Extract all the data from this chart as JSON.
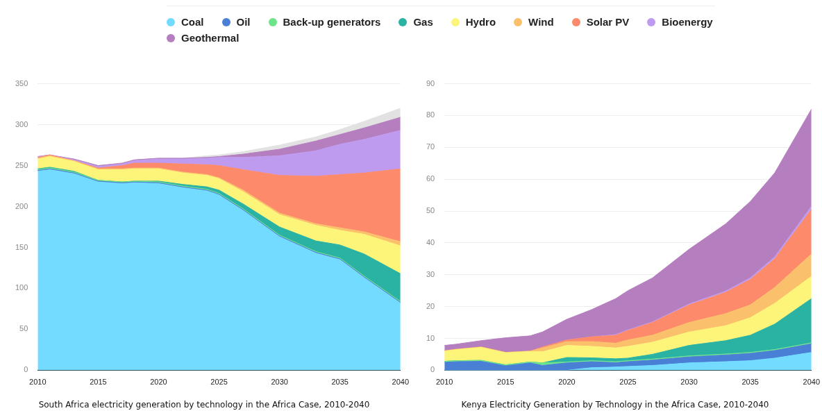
{
  "chart_data": [
    {
      "type": "area",
      "stacked": true,
      "title": "South Africa electricity generation by technology in the Africa Case, 2010-2040",
      "legend": "top",
      "grid": "y",
      "marker": "none",
      "x": [
        2010,
        2011,
        2013,
        2015,
        2017,
        2018,
        2020,
        2022,
        2024,
        2025,
        2027,
        2030,
        2033,
        2035,
        2037,
        2040
      ],
      "xlim": [
        2010,
        2040
      ],
      "xticks": [
        2010,
        2015,
        2020,
        2025,
        2030,
        2035,
        2040
      ],
      "ylim": [
        0,
        350
      ],
      "yticks": [
        0,
        50,
        100,
        150,
        200,
        250,
        300,
        350
      ],
      "series": [
        {
          "name": "Coal",
          "color": "#73dbff",
          "values": [
            243,
            245,
            240,
            230,
            228,
            229,
            228,
            223,
            219,
            214,
            195,
            163,
            143,
            135,
            113,
            82
          ]
        },
        {
          "name": "Oil",
          "color": "#4a7fd6",
          "values": [
            1,
            1,
            1,
            1,
            1,
            1,
            1,
            1,
            1,
            1,
            1,
            1,
            1,
            1,
            1,
            1
          ]
        },
        {
          "name": "Back-up generators",
          "color": "#6ee38a",
          "values": [
            1,
            1,
            1,
            1,
            1,
            1,
            1,
            1,
            1,
            1,
            1,
            1,
            1,
            1,
            1,
            1
          ]
        },
        {
          "name": "Gas",
          "color": "#2ab3a3",
          "values": [
            1,
            1,
            1,
            0,
            0,
            0,
            1,
            2,
            3,
            4,
            6,
            10,
            13,
            16,
            27,
            34
          ]
        },
        {
          "name": "Hydro",
          "color": "#fdf47a",
          "values": [
            12,
            13,
            12,
            13,
            15,
            15,
            15,
            14,
            14,
            14,
            15,
            15,
            19,
            18,
            24,
            34
          ]
        },
        {
          "name": "Wind",
          "color": "#fbc06b",
          "values": [
            1,
            1,
            1,
            1,
            1,
            1,
            1,
            1,
            1,
            1,
            2,
            2,
            2,
            3,
            3,
            5
          ]
        },
        {
          "name": "Solar PV",
          "color": "#fd8a6a",
          "values": [
            1,
            1,
            0,
            1,
            4,
            6,
            6,
            10,
            12,
            15,
            25,
            46,
            58,
            65,
            72,
            89
          ]
        },
        {
          "name": "Bioenergy",
          "color": "#bf9bf0",
          "values": [
            1,
            0,
            1,
            2,
            2,
            3,
            5,
            6,
            8,
            10,
            15,
            24,
            31,
            37,
            41,
            47
          ]
        },
        {
          "name": "Geothermal",
          "color": "#b57fbf",
          "values": [
            0,
            0,
            1,
            1,
            1,
            1,
            1,
            1,
            1,
            1,
            4,
            8,
            12,
            12,
            14,
            16
          ]
        },
        {
          "color": "#e2e2e2",
          "values": [
            0,
            0,
            0,
            0,
            0,
            0,
            0,
            0,
            2,
            2,
            3,
            5,
            5,
            6,
            8,
            11
          ]
        }
      ]
    },
    {
      "type": "area",
      "stacked": true,
      "title": "Kenya Electricity Generation by Technology in the Africa Case, 2010-2040",
      "grid": "y",
      "marker": "none",
      "x": [
        2010,
        2011,
        2013,
        2015,
        2017,
        2018,
        2020,
        2022,
        2024,
        2025,
        2027,
        2030,
        2033,
        2035,
        2037,
        2040
      ],
      "xlim": [
        2010,
        2040
      ],
      "xticks": [
        2010,
        2015,
        2020,
        2025,
        2030,
        2035,
        2040
      ],
      "ylim": [
        0,
        90
      ],
      "yticks": [
        0,
        10,
        20,
        30,
        40,
        50,
        60,
        70,
        80,
        90
      ],
      "series": [
        {
          "color": "#73dbff",
          "values": [
            0,
            0,
            0,
            0,
            0,
            0,
            0,
            0.8,
            1,
            1.2,
            1.5,
            2.3,
            2.7,
            3,
            3.8,
            5.6
          ]
        },
        {
          "color": "#4a7fd6",
          "values": [
            2.5,
            2.7,
            2.8,
            1.4,
            2.3,
            1.5,
            2.3,
            1.9,
            1.4,
            1.5,
            1.7,
            1.9,
            2.1,
            2.3,
            2.4,
            2.7
          ]
        },
        {
          "color": "#6ee38a",
          "values": [
            0.3,
            0.3,
            0.3,
            0.3,
            0.3,
            0.8,
            0.3,
            0.3,
            0.3,
            0.3,
            0.3,
            0.3,
            0.3,
            0.3,
            0.3,
            0.3
          ]
        },
        {
          "color": "#2ab3a3",
          "values": [
            0,
            0,
            0,
            0,
            0,
            0,
            1.4,
            0.9,
            0.9,
            0.8,
            1.5,
            3.3,
            4.2,
            5.4,
            8,
            13.9
          ]
        },
        {
          "color": "#fdf47a",
          "values": [
            3.2,
            3.5,
            4.1,
            3.8,
            3.3,
            3.5,
            3.8,
            3.6,
            3.4,
            3.7,
            3.8,
            4.2,
            4.7,
            5.5,
            6.5,
            7
          ]
        },
        {
          "color": "#fbc06b",
          "values": [
            0.1,
            0.1,
            0.1,
            0.1,
            0.1,
            1.2,
            1.2,
            1.5,
            1.5,
            2,
            2.2,
            3,
            3.8,
            4,
            5,
            7
          ]
        },
        {
          "color": "#fd8a6a",
          "values": [
            0,
            0,
            0,
            0,
            0,
            0.3,
            0.5,
            1.5,
            2.5,
            3,
            4,
            5.5,
            6.7,
            8,
            9,
            14
          ]
        },
        {
          "color": "#bf9bf0",
          "values": [
            0,
            0,
            0,
            0,
            0,
            0,
            0,
            0,
            0.2,
            0.2,
            0.2,
            0.3,
            0.4,
            0.5,
            0.6,
            1
          ]
        },
        {
          "color": "#b57fbf",
          "values": [
            1.7,
            1.6,
            2,
            4.6,
            4.8,
            4.7,
            6.5,
            8.5,
            11.3,
            12.3,
            13.8,
            17.2,
            21.1,
            24,
            26.4,
            30.5
          ]
        }
      ]
    }
  ]
}
